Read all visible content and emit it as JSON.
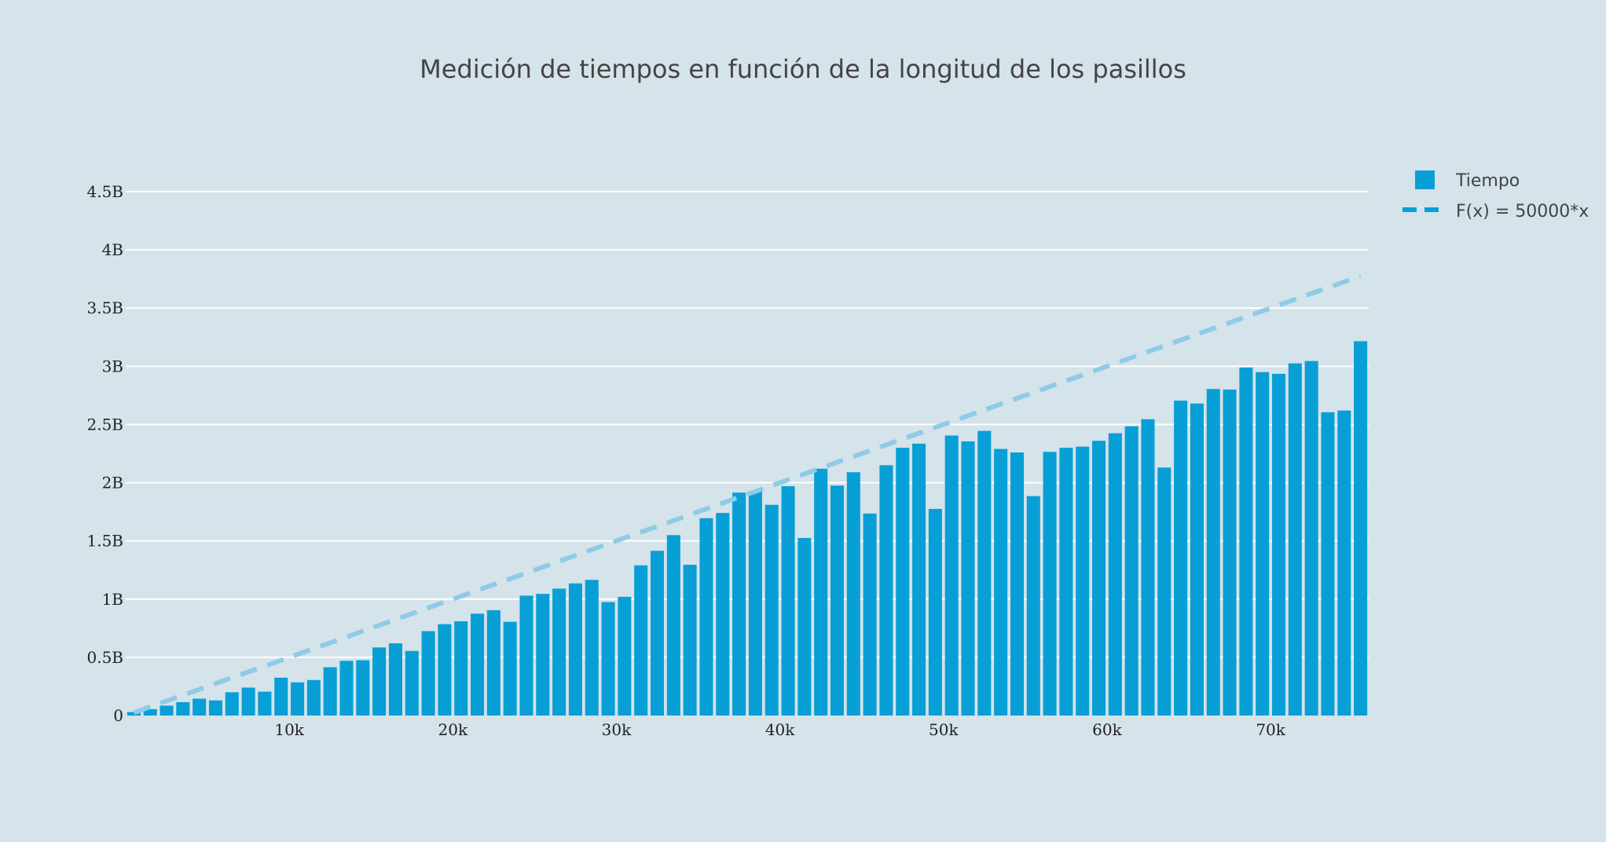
{
  "chart_data": {
    "type": "bar",
    "title": "Medición de tiempos en función de la longitud de los pasillos",
    "xlabel": "",
    "ylabel": "",
    "xlim": [
      0,
      76000
    ],
    "ylim": [
      0,
      4500000000
    ],
    "x_ticks": [
      {
        "value": 10000,
        "label": "10k"
      },
      {
        "value": 20000,
        "label": "20k"
      },
      {
        "value": 30000,
        "label": "30k"
      },
      {
        "value": 40000,
        "label": "40k"
      },
      {
        "value": 50000,
        "label": "50k"
      },
      {
        "value": 60000,
        "label": "60k"
      },
      {
        "value": 70000,
        "label": "70k"
      }
    ],
    "y_ticks": [
      {
        "value": 0,
        "label": "0"
      },
      {
        "value": 500000000,
        "label": "0.5B"
      },
      {
        "value": 1000000000,
        "label": "1B"
      },
      {
        "value": 1500000000,
        "label": "1.5B"
      },
      {
        "value": 2000000000,
        "label": "2B"
      },
      {
        "value": 2500000000,
        "label": "2.5B"
      },
      {
        "value": 3000000000,
        "label": "3B"
      },
      {
        "value": 3500000000,
        "label": "3.5B"
      },
      {
        "value": 4000000000,
        "label": "4B"
      },
      {
        "value": 4500000000,
        "label": "4.5B"
      }
    ],
    "legend_position": "top-right",
    "series": [
      {
        "name": "Tiempo",
        "type": "bar",
        "color": "#089fd6",
        "x_start": 500,
        "x_step": 1000,
        "values": [
          30000000,
          55000000,
          85000000,
          115000000,
          145000000,
          130000000,
          200000000,
          240000000,
          205000000,
          325000000,
          285000000,
          305000000,
          415000000,
          470000000,
          475000000,
          585000000,
          620000000,
          555000000,
          725000000,
          785000000,
          810000000,
          875000000,
          905000000,
          805000000,
          1030000000,
          1045000000,
          1090000000,
          1135000000,
          1165000000,
          975000000,
          1020000000,
          1290000000,
          1415000000,
          1550000000,
          1295000000,
          1695000000,
          1740000000,
          1915000000,
          1925000000,
          1810000000,
          1970000000,
          1525000000,
          2120000000,
          1975000000,
          2090000000,
          1735000000,
          2150000000,
          2300000000,
          2335000000,
          1775000000,
          2405000000,
          2355000000,
          2445000000,
          2290000000,
          2260000000,
          1885000000,
          2265000000,
          2300000000,
          2310000000,
          2360000000,
          2425000000,
          2485000000,
          2545000000,
          2130000000,
          2705000000,
          2680000000,
          2805000000,
          2800000000,
          2990000000,
          2950000000,
          2935000000,
          3025000000,
          3045000000,
          2605000000,
          2620000000,
          3215000000
        ]
      },
      {
        "name": "F(x) = 50000*x",
        "type": "line",
        "dash": "dashed",
        "color": "#8ecbe6",
        "x": [
          500,
          75500
        ],
        "values": [
          25000000,
          3775000000
        ]
      }
    ]
  }
}
